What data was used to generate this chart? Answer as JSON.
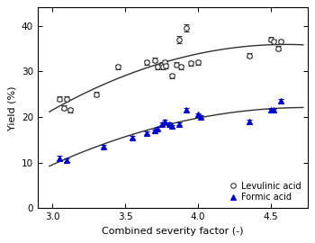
{
  "title": "",
  "xlabel": "Combined severity factor (-)",
  "ylabel": "Yield (%)",
  "xlim": [
    2.9,
    4.75
  ],
  "ylim": [
    0,
    44
  ],
  "yticks": [
    0,
    10,
    20,
    30,
    40
  ],
  "xticks": [
    3.0,
    3.5,
    4.0,
    4.5
  ],
  "levulinic_x": [
    3.05,
    3.08,
    3.1,
    3.12,
    3.3,
    3.45,
    3.65,
    3.7,
    3.72,
    3.75,
    3.76,
    3.77,
    3.78,
    3.82,
    3.85,
    3.87,
    3.88,
    3.92,
    3.95,
    4.0,
    4.35,
    4.5,
    4.52,
    4.55,
    4.57
  ],
  "levulinic_y": [
    24.0,
    22.0,
    24.0,
    21.5,
    25.0,
    31.0,
    32.0,
    32.5,
    31.0,
    31.5,
    31.0,
    32.0,
    31.2,
    29.0,
    31.5,
    37.0,
    31.0,
    39.5,
    31.8,
    32.0,
    33.5,
    37.0,
    36.5,
    35.0,
    36.5
  ],
  "levulinic_yerr": [
    0.5,
    0.5,
    0.5,
    0.5,
    0.5,
    0.5,
    0.5,
    0.5,
    0.5,
    0.5,
    0.5,
    0.5,
    0.5,
    0.5,
    0.5,
    0.8,
    0.5,
    0.8,
    0.5,
    0.5,
    0.5,
    0.5,
    0.5,
    0.5,
    0.5
  ],
  "formic_x": [
    3.05,
    3.1,
    3.35,
    3.55,
    3.65,
    3.7,
    3.72,
    3.75,
    3.77,
    3.8,
    3.82,
    3.87,
    3.92,
    4.0,
    4.02,
    4.35,
    4.5,
    4.52,
    4.57
  ],
  "formic_y": [
    11.0,
    10.5,
    13.5,
    15.5,
    16.5,
    17.0,
    17.5,
    18.5,
    19.0,
    18.5,
    18.0,
    18.5,
    21.5,
    20.5,
    20.0,
    19.0,
    21.5,
    21.5,
    23.5
  ],
  "formic_yerr": [
    0.4,
    0.4,
    0.3,
    0.3,
    0.3,
    0.3,
    0.3,
    0.3,
    0.3,
    0.3,
    0.3,
    0.3,
    0.4,
    0.3,
    0.3,
    0.3,
    0.3,
    0.3,
    0.4
  ],
  "levulinic_color": "#303030",
  "formic_color": "#0000cc",
  "fit_color": "#303030",
  "marker_size": 4,
  "legend_fontsize": 7,
  "axis_fontsize": 8,
  "tick_fontsize": 7.5,
  "lev_fit_params": [
    15.5,
    2.55,
    0.0
  ],
  "for_fit_params": [
    11.5,
    2.3,
    0.0
  ]
}
